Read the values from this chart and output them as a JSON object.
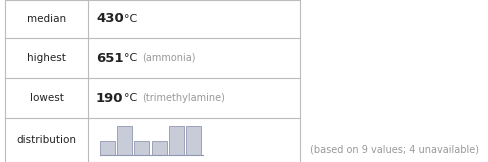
{
  "median_val": "430",
  "highest_val": "651",
  "highest_label": "ammonia",
  "lowest_val": "190",
  "lowest_label": "trimethylamine",
  "footnote": "(based on 9 values; 4 unavailable)",
  "table_rows": [
    "median",
    "highest",
    "lowest",
    "distribution"
  ],
  "bar_heights": [
    1,
    2,
    1,
    1,
    2,
    2
  ],
  "bar_color": "#c8ccd8",
  "bar_edge_color": "#9098b0",
  "table_line_color": "#bbbbbb",
  "text_color_dark": "#222222",
  "text_color_light": "#999999",
  "fig_bg": "#ffffff",
  "fig_width": 4.89,
  "fig_height": 1.62,
  "dpi": 100
}
